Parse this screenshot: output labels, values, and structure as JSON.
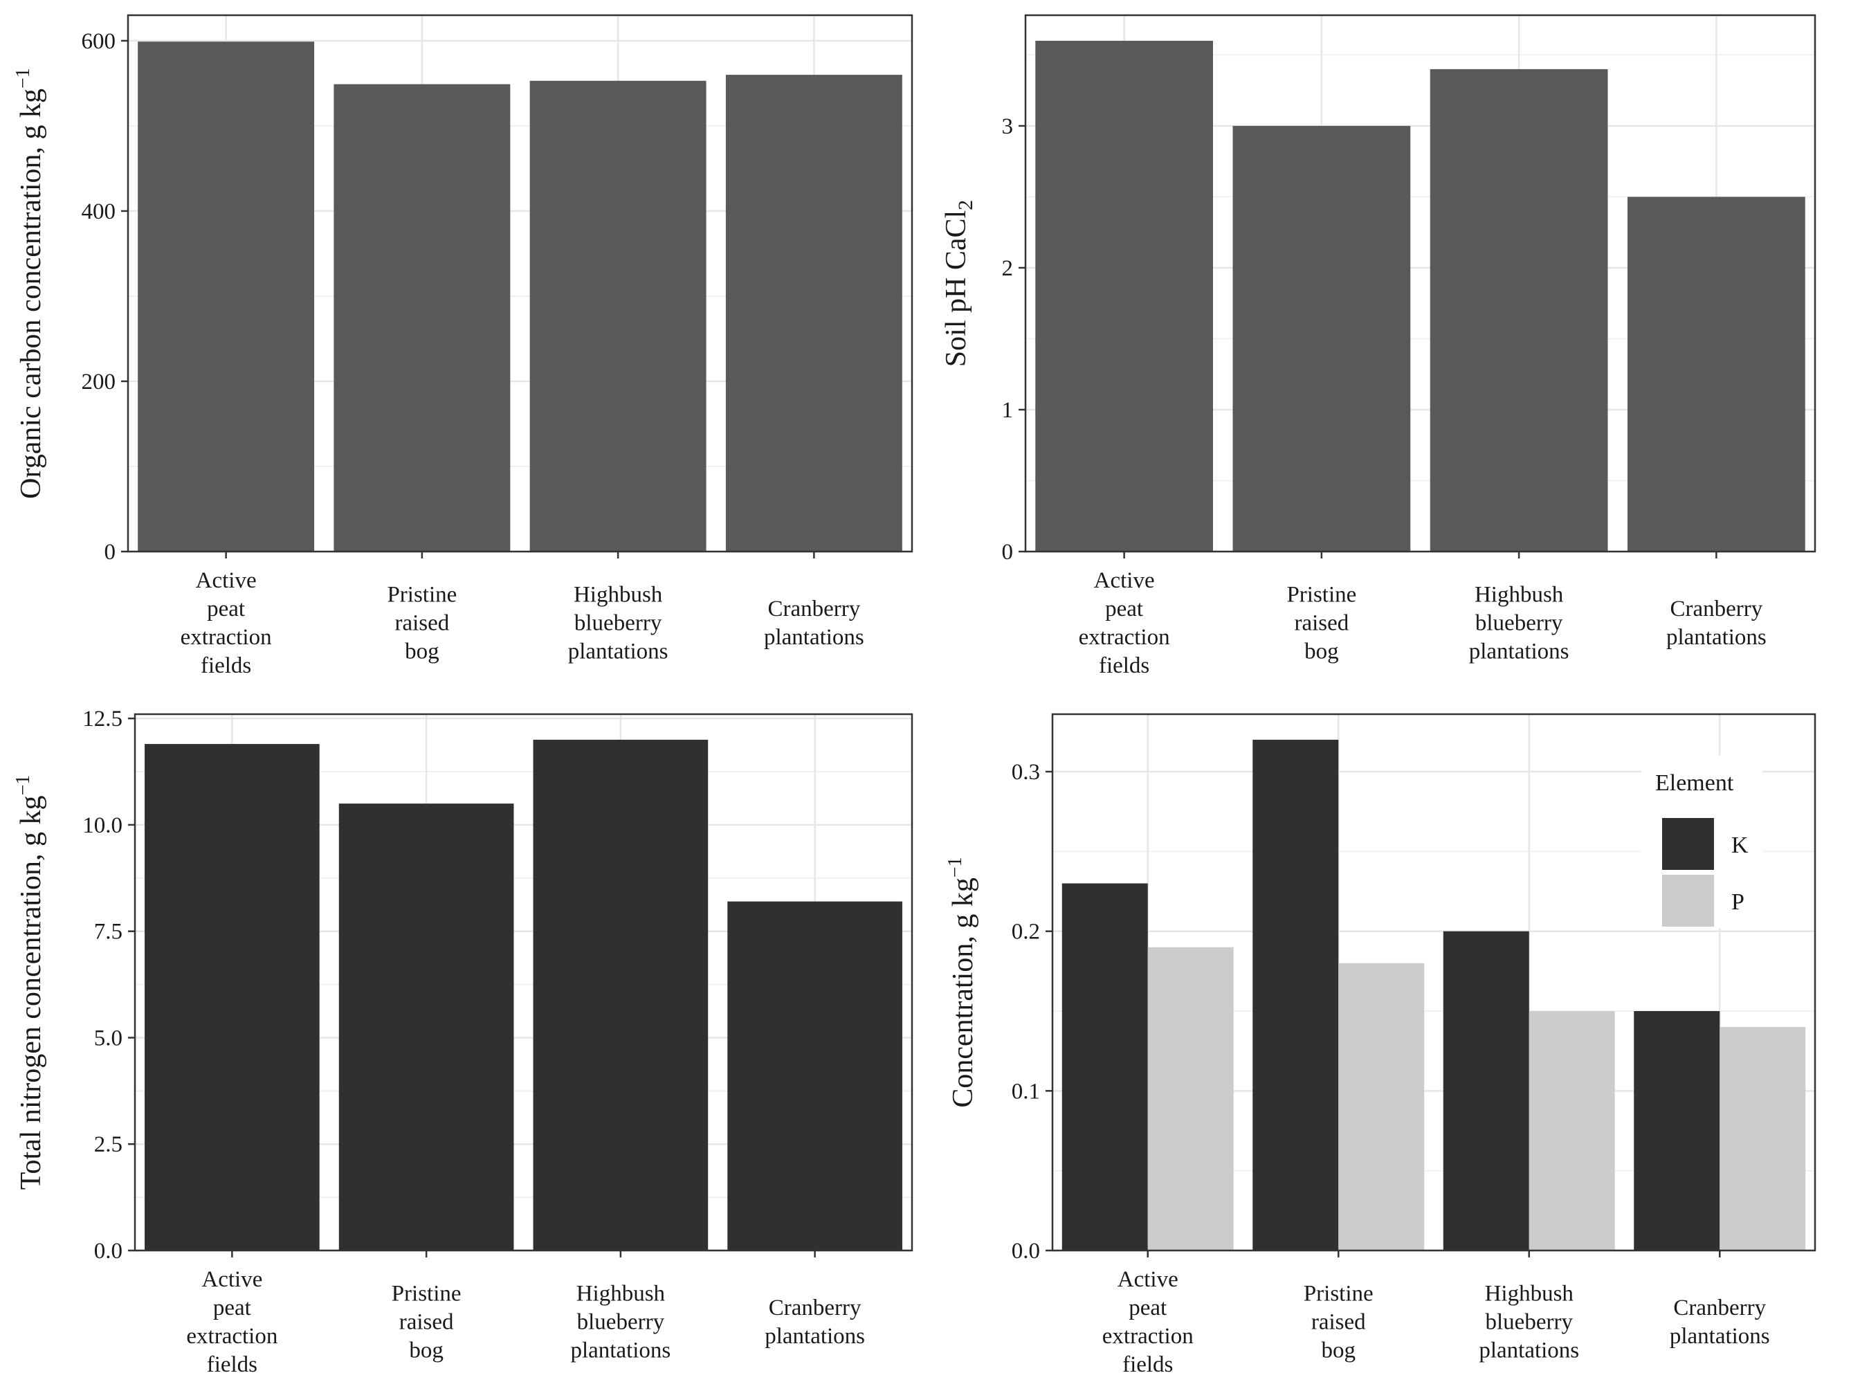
{
  "chart_data": [
    {
      "id": "organic-carbon",
      "type": "bar",
      "categories": [
        [
          "Active",
          "peat",
          "extraction",
          "fields"
        ],
        [
          "Pristine",
          "raised",
          "bog"
        ],
        [
          "Highbush",
          "blueberry",
          "plantations"
        ],
        [
          "Cranberry",
          "plantations"
        ]
      ],
      "series": [
        {
          "name": "Organic carbon",
          "values": [
            599,
            549,
            553,
            560
          ],
          "color": "#595959"
        }
      ],
      "ylabel": {
        "main": "Organic carbon concentration, g kg",
        "sup": "−1"
      },
      "ylim": [
        0,
        630
      ],
      "yticks": [
        0,
        200,
        400,
        600
      ],
      "ytick_labels": [
        "0",
        "200",
        "400",
        "600"
      ],
      "grid": true
    },
    {
      "id": "soil-ph",
      "type": "bar",
      "categories": [
        [
          "Active",
          "peat",
          "extraction",
          "fields"
        ],
        [
          "Pristine",
          "raised",
          "bog"
        ],
        [
          "Highbush",
          "blueberry",
          "plantations"
        ],
        [
          "Cranberry",
          "plantations"
        ]
      ],
      "series": [
        {
          "name": "Soil pH",
          "values": [
            3.6,
            3.0,
            3.4,
            2.5
          ],
          "color": "#595959"
        }
      ],
      "ylabel": {
        "main": "Soil pH CaCl",
        "sub": "2"
      },
      "ylim": [
        0,
        3.78
      ],
      "yticks": [
        0,
        1,
        2,
        3
      ],
      "ytick_labels": [
        "0",
        "1",
        "2",
        "3"
      ],
      "grid": true
    },
    {
      "id": "total-nitrogen",
      "type": "bar",
      "categories": [
        [
          "Active",
          "peat",
          "extraction",
          "fields"
        ],
        [
          "Pristine",
          "raised",
          "bog"
        ],
        [
          "Highbush",
          "blueberry",
          "plantations"
        ],
        [
          "Cranberry",
          "plantations"
        ]
      ],
      "series": [
        {
          "name": "Total nitrogen",
          "values": [
            11.9,
            10.5,
            12.0,
            8.2
          ],
          "color": "#303030"
        }
      ],
      "ylabel": {
        "main": "Total nitrogen concentration, g kg",
        "sup": "−1"
      },
      "ylim": [
        0,
        12.6
      ],
      "yticks": [
        0,
        2.5,
        5,
        7.5,
        10,
        12.5
      ],
      "ytick_labels": [
        "0.0",
        "2.5",
        "5.0",
        "7.5",
        "10.0",
        "12.5"
      ],
      "grid": true
    },
    {
      "id": "k-p-concentration",
      "type": "bar",
      "categories": [
        [
          "Active",
          "peat",
          "extraction",
          "fields"
        ],
        [
          "Pristine",
          "raised",
          "bog"
        ],
        [
          "Highbush",
          "blueberry",
          "plantations"
        ],
        [
          "Cranberry",
          "plantations"
        ]
      ],
      "series": [
        {
          "name": "K",
          "values": [
            0.23,
            0.32,
            0.2,
            0.15
          ],
          "color": "#303030"
        },
        {
          "name": "P",
          "values": [
            0.19,
            0.18,
            0.15,
            0.14
          ],
          "color": "#cccccc"
        }
      ],
      "ylabel": {
        "main": "Concentration, g kg",
        "sup": "−1"
      },
      "ylim": [
        0,
        0.336
      ],
      "yticks": [
        0,
        0.1,
        0.2,
        0.3
      ],
      "ytick_labels": [
        "0.0",
        "0.1",
        "0.2",
        "0.3"
      ],
      "legend": {
        "title": "Element",
        "entries": [
          "K",
          "P"
        ],
        "placement": "top-right"
      },
      "grid": true
    }
  ]
}
